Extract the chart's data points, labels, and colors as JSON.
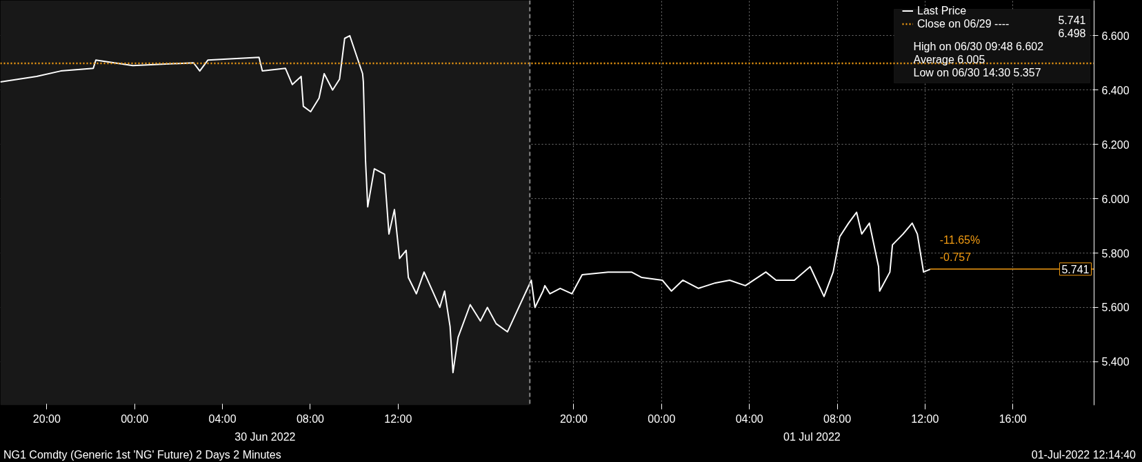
{
  "chart_data": {
    "type": "line",
    "x": [
      "2022-06-29T17:53",
      "2022-06-29T19:32",
      "2022-06-29T20:38",
      "2022-06-29T22:07",
      "2022-06-29T22:14",
      "2022-06-29T23:55",
      "2022-06-30T02:41",
      "2022-06-30T02:58",
      "2022-06-30T03:20",
      "2022-06-30T05:40",
      "2022-06-30T05:49",
      "2022-06-30T06:52",
      "2022-06-30T07:11",
      "2022-06-30T07:35",
      "2022-06-30T07:41",
      "2022-06-30T08:01",
      "2022-06-30T08:24",
      "2022-06-30T08:38",
      "2022-06-30T09:01",
      "2022-06-30T09:20",
      "2022-06-30T09:34",
      "2022-06-30T09:48",
      "2022-06-30T10:03",
      "2022-06-30T10:23",
      "2022-06-30T10:25",
      "2022-06-30T10:31",
      "2022-06-30T10:37",
      "2022-06-30T10:55",
      "2022-06-30T11:23",
      "2022-06-30T11:35",
      "2022-06-30T11:50",
      "2022-06-30T12:04",
      "2022-06-30T12:22",
      "2022-06-30T12:28",
      "2022-06-30T12:50",
      "2022-06-30T13:11",
      "2022-06-30T13:54",
      "2022-06-30T14:07",
      "2022-06-30T14:22",
      "2022-06-30T14:30",
      "2022-06-30T14:44",
      "2022-06-30T15:17",
      "2022-06-30T15:45",
      "2022-06-30T16:04",
      "2022-06-30T16:28",
      "2022-06-30T16:59",
      "2022-06-30T18:04",
      "2022-06-30T18:14",
      "2022-06-30T18:36",
      "2022-06-30T18:41",
      "2022-06-30T18:55",
      "2022-06-30T19:23",
      "2022-06-30T19:55",
      "2022-06-30T20:23",
      "2022-06-30T21:34",
      "2022-06-30T22:38",
      "2022-06-30T23:06",
      "2022-07-01T00:02",
      "2022-07-01T00:27",
      "2022-07-01T00:58",
      "2022-07-01T01:41",
      "2022-07-01T02:27",
      "2022-07-01T03:06",
      "2022-07-01T03:49",
      "2022-07-01T04:45",
      "2022-07-01T05:13",
      "2022-07-01T06:03",
      "2022-07-01T06:46",
      "2022-07-01T07:24",
      "2022-07-01T07:49",
      "2022-07-01T08:07",
      "2022-07-01T08:31",
      "2022-07-01T08:53",
      "2022-07-01T09:07",
      "2022-07-01T09:28",
      "2022-07-01T09:53",
      "2022-07-01T09:56",
      "2022-07-01T10:24",
      "2022-07-01T10:31",
      "2022-07-01T11:00",
      "2022-07-01T11:25",
      "2022-07-01T11:39",
      "2022-07-01T11:56",
      "2022-07-01T12:14"
    ],
    "series": [
      {
        "name": "Last Price",
        "color": "#ffffff",
        "values": [
          6.43,
          6.45,
          6.47,
          6.48,
          6.51,
          6.49,
          6.5,
          6.47,
          6.51,
          6.52,
          6.47,
          6.48,
          6.42,
          6.45,
          6.34,
          6.32,
          6.37,
          6.46,
          6.4,
          6.44,
          6.59,
          6.6,
          6.54,
          6.46,
          6.43,
          6.14,
          5.97,
          6.11,
          6.09,
          5.87,
          5.96,
          5.78,
          5.81,
          5.71,
          5.65,
          5.73,
          5.6,
          5.66,
          5.53,
          5.36,
          5.49,
          5.61,
          5.55,
          5.6,
          5.54,
          5.51,
          5.7,
          5.6,
          5.66,
          5.68,
          5.65,
          5.67,
          5.65,
          5.72,
          5.73,
          5.73,
          5.71,
          5.7,
          5.66,
          5.7,
          5.67,
          5.69,
          5.7,
          5.68,
          5.73,
          5.7,
          5.7,
          5.75,
          5.64,
          5.73,
          5.86,
          5.91,
          5.95,
          5.87,
          5.91,
          5.75,
          5.66,
          5.73,
          5.83,
          5.87,
          5.91,
          5.87,
          5.73,
          5.74
        ]
      }
    ],
    "xlim": [
      "2022-06-29T17:53",
      "2022-07-01T19:42"
    ],
    "xticks": [
      {
        "value": "2022-06-29T20:00",
        "label": "20:00"
      },
      {
        "value": "2022-06-30T00:00",
        "label": "00:00"
      },
      {
        "value": "2022-06-30T04:00",
        "label": "04:00"
      },
      {
        "value": "2022-06-30T08:00",
        "label": "08:00"
      },
      {
        "value": "2022-06-30T12:00",
        "label": "12:00"
      },
      {
        "value": "2022-06-30T20:00",
        "label": "20:00"
      },
      {
        "value": "2022-07-01T00:00",
        "label": "00:00"
      },
      {
        "value": "2022-07-01T04:00",
        "label": "04:00"
      },
      {
        "value": "2022-07-01T08:00",
        "label": "08:00"
      },
      {
        "value": "2022-07-01T12:00",
        "label": "12:00"
      },
      {
        "value": "2022-07-01T16:00",
        "label": "16:00"
      }
    ],
    "ylim": [
      5.24,
      6.73
    ],
    "yticks": [
      {
        "value": 5.4,
        "label": "5.400"
      },
      {
        "value": 5.6,
        "label": "5.600"
      },
      {
        "value": 5.8,
        "label": "5.800"
      },
      {
        "value": 6.0,
        "label": "6.000"
      },
      {
        "value": 6.2,
        "label": "6.200"
      },
      {
        "value": 6.4,
        "label": "6.400"
      },
      {
        "value": 6.6,
        "label": "6.600"
      }
    ],
    "grid": true,
    "legend": "top right",
    "line_style": "solid",
    "ref_lines": [
      {
        "axis": "y",
        "value": 6.498,
        "label": "Close on 06/29 ----",
        "color": "#f39c12",
        "line_style": "dotted"
      },
      {
        "axis": "x",
        "value": "2022-06-30T18:00",
        "color": "#888888",
        "line_style": "dashed"
      },
      {
        "axis": "y",
        "value": 5.741,
        "label": "5.741",
        "color": "#f39c12",
        "line_style": "solid"
      }
    ],
    "bands": [
      {
        "axis": "x",
        "from": "2022-06-29T17:53",
        "to": "2022-06-30T18:00",
        "color": "#181818"
      }
    ],
    "annotations": [
      "30 Jun 2022",
      "01 Jul 2022",
      "-11.65%",
      "-0.757",
      "5.741",
      "6.498",
      "High on 06/30 09:48 6.602",
      "Average 6.005",
      "Low on 06/30 14:30 5.357",
      "NG1 Comdty (Generic 1st 'NG' Future) 2 Days 2 Minutes",
      "01-Jul-2022 12:14:40"
    ]
  }
}
